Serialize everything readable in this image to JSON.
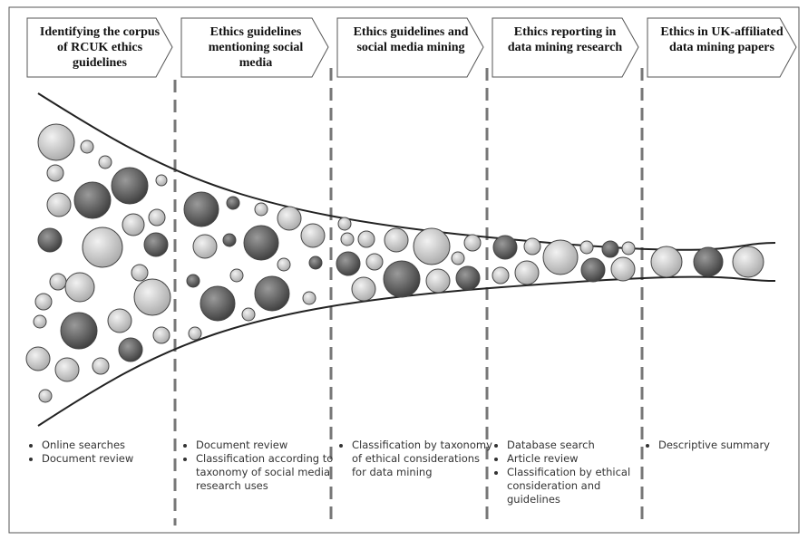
{
  "stages": [
    {
      "title": "Identifying the corpus of RCUK ethics guidelines",
      "bullets": [
        "Online searches",
        "Document review"
      ]
    },
    {
      "title": "Ethics guidelines mentioning social media",
      "bullets": [
        "Document review",
        "Classification according to taxonomy of social media research uses"
      ]
    },
    {
      "title": "Ethics guidelines and social media mining",
      "bullets": [
        "Classification by taxonomy of ethical considerations for data mining"
      ]
    },
    {
      "title": "Ethics reporting in data mining research",
      "bullets": [
        "Database search",
        "Article review",
        "Classification by ethical consideration and guidelines"
      ]
    },
    {
      "title": "Ethics in UK-affiliated data mining papers",
      "bullets": [
        "Descriptive summary"
      ]
    }
  ]
}
